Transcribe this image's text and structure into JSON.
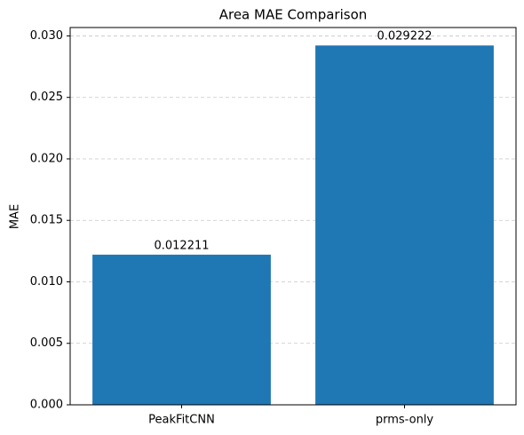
{
  "chart_data": {
    "type": "bar",
    "title": "Area MAE Comparison",
    "y_label": "MAE",
    "categories": [
      "PeakFitCNN",
      "prms-only"
    ],
    "values": [
      0.012211,
      0.029222
    ],
    "color": "#1f77b4",
    "ylim": [
      0,
      0.030683
    ],
    "yticks": [
      {
        "value": 0,
        "label": "0.000"
      },
      {
        "value": 0.005,
        "label": "0.005"
      },
      {
        "value": 0.01,
        "label": "0.010"
      },
      {
        "value": 0.015,
        "label": "0.015"
      },
      {
        "value": 0.02,
        "label": "0.020"
      },
      {
        "value": 0.025,
        "label": "0.025"
      },
      {
        "value": 0.03,
        "label": "0.030"
      }
    ],
    "grid": true
  }
}
